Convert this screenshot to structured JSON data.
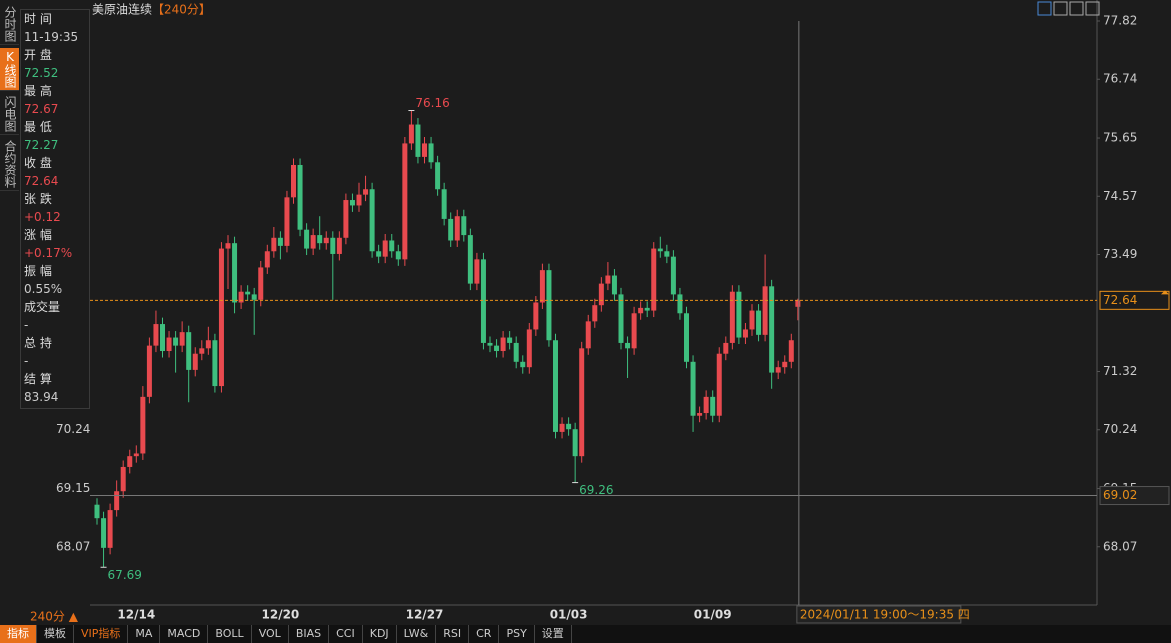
{
  "chart_data": {
    "type": "candlestick",
    "title": "美原油连续",
    "period": "【240分】",
    "period_switch": "240分 ▲",
    "up_color": "#e84a4f",
    "down_color": "#3fbf7f",
    "categories": [
      null,
      null,
      null,
      null,
      null,
      null,
      "12/14",
      null,
      null,
      null,
      null,
      null,
      null,
      null,
      null,
      null,
      null,
      null,
      null,
      null,
      null,
      null,
      null,
      null,
      null,
      null,
      null,
      null,
      "12/20",
      null,
      null,
      null,
      null,
      null,
      null,
      null,
      null,
      null,
      null,
      null,
      null,
      null,
      null,
      null,
      null,
      null,
      null,
      null,
      null,
      null,
      "12/27",
      null,
      null,
      null,
      null,
      null,
      null,
      null,
      null,
      null,
      null,
      null,
      null,
      null,
      null,
      null,
      null,
      null,
      null,
      null,
      null,
      null,
      "01/03",
      null,
      null,
      null,
      null,
      null,
      null,
      null,
      null,
      null,
      null,
      null,
      null,
      null,
      null,
      null,
      null,
      null,
      null,
      null,
      null,
      null,
      "01/09",
      null,
      null,
      null,
      null,
      null,
      null,
      null,
      null,
      null,
      null,
      null,
      null,
      null
    ],
    "open": [
      68.85,
      68.6,
      68.05,
      68.75,
      69.1,
      69.55,
      69.75,
      69.8,
      70.85,
      71.8,
      72.2,
      71.7,
      71.95,
      71.8,
      72.05,
      71.35,
      71.65,
      71.75,
      71.9,
      71.05,
      73.6,
      73.7,
      72.6,
      72.8,
      72.75,
      72.65,
      73.25,
      73.55,
      73.8,
      73.65,
      74.55,
      75.15,
      73.95,
      73.6,
      73.85,
      73.7,
      73.8,
      73.5,
      73.8,
      74.5,
      74.4,
      74.6,
      74.7,
      73.55,
      73.45,
      73.75,
      73.55,
      73.4,
      75.55,
      75.9,
      75.3,
      75.55,
      75.2,
      74.7,
      74.15,
      73.75,
      74.2,
      73.85,
      72.95,
      73.4,
      71.85,
      71.8,
      71.7,
      71.95,
      71.85,
      71.5,
      71.4,
      72.1,
      72.6,
      73.2,
      71.9,
      70.2,
      70.35,
      70.25,
      69.75,
      71.75,
      72.25,
      72.55,
      72.95,
      73.1,
      72.75,
      71.85,
      71.75,
      72.4,
      72.5,
      72.45,
      73.6,
      73.55,
      73.45,
      72.75,
      72.4,
      71.5,
      70.5,
      70.55,
      70.85,
      70.5,
      71.65,
      71.85,
      72.8,
      71.95,
      72.1,
      72.45,
      72.0,
      72.9,
      71.3,
      71.4,
      71.5,
      72.52
    ],
    "high": [
      68.97,
      68.72,
      68.87,
      69.3,
      69.67,
      69.87,
      69.95,
      71.05,
      71.95,
      72.45,
      72.32,
      72.07,
      72.07,
      72.25,
      72.17,
      71.77,
      71.9,
      72.15,
      72.02,
      73.72,
      73.85,
      73.82,
      72.92,
      72.92,
      72.87,
      73.37,
      73.67,
      74.0,
      73.92,
      74.67,
      75.27,
      75.27,
      74.07,
      73.97,
      74.2,
      73.92,
      73.92,
      73.92,
      74.62,
      74.62,
      74.82,
      74.95,
      74.82,
      73.67,
      73.87,
      73.87,
      73.67,
      75.67,
      76.16,
      76.02,
      75.67,
      75.67,
      75.32,
      74.82,
      74.27,
      74.32,
      74.32,
      73.97,
      73.52,
      73.52,
      71.97,
      71.92,
      72.07,
      72.07,
      71.97,
      71.62,
      72.22,
      72.72,
      73.32,
      73.32,
      72.02,
      70.47,
      70.47,
      70.37,
      71.87,
      72.37,
      72.67,
      73.07,
      73.35,
      73.22,
      72.87,
      71.97,
      72.52,
      72.62,
      72.62,
      73.72,
      73.82,
      73.67,
      73.57,
      72.87,
      72.52,
      71.62,
      70.67,
      70.97,
      70.97,
      71.77,
      71.97,
      72.92,
      72.92,
      72.22,
      72.57,
      72.57,
      73.49,
      73.02,
      71.52,
      71.62,
      72.02,
      72.67
    ],
    "low": [
      68.48,
      67.69,
      67.93,
      68.63,
      68.98,
      69.43,
      69.63,
      69.68,
      70.73,
      71.68,
      71.58,
      71.58,
      71.3,
      71.68,
      70.75,
      71.23,
      71.53,
      71.63,
      70.93,
      70.93,
      72.85,
      72.4,
      72.48,
      72.63,
      72.0,
      72.53,
      73.13,
      73.43,
      73.4,
      73.53,
      74.43,
      73.83,
      73.48,
      73.48,
      73.58,
      73.58,
      72.65,
      73.38,
      73.68,
      74.28,
      74.28,
      74.48,
      73.43,
      73.33,
      73.33,
      73.43,
      73.28,
      73.28,
      75.43,
      75.18,
      75.18,
      75.08,
      74.58,
      74.03,
      73.63,
      73.63,
      73.73,
      72.83,
      72.83,
      71.73,
      71.68,
      71.58,
      71.58,
      71.73,
      71.38,
      71.28,
      71.28,
      71.98,
      72.48,
      71.78,
      70.08,
      70.08,
      70.13,
      69.26,
      69.63,
      71.63,
      72.13,
      72.43,
      72.83,
      72.63,
      71.73,
      71.2,
      71.63,
      72.28,
      72.33,
      72.33,
      73.43,
      73.33,
      72.63,
      72.28,
      71.38,
      70.2,
      70.38,
      70.43,
      70.38,
      70.38,
      71.53,
      71.73,
      71.83,
      71.83,
      71.98,
      71.88,
      71.88,
      71.0,
      71.18,
      71.28,
      71.38,
      72.27
    ],
    "close": [
      68.6,
      68.05,
      68.75,
      69.1,
      69.55,
      69.75,
      69.8,
      70.85,
      71.8,
      72.2,
      71.7,
      71.95,
      71.8,
      72.05,
      71.35,
      71.65,
      71.75,
      71.9,
      71.05,
      73.6,
      73.7,
      72.6,
      72.8,
      72.75,
      72.65,
      73.25,
      73.55,
      73.8,
      73.65,
      74.55,
      75.15,
      73.95,
      73.6,
      73.85,
      73.7,
      73.8,
      73.5,
      73.8,
      74.5,
      74.4,
      74.6,
      74.7,
      73.55,
      73.45,
      73.75,
      73.55,
      73.4,
      75.55,
      75.9,
      75.3,
      75.55,
      75.2,
      74.7,
      74.15,
      73.75,
      74.2,
      73.85,
      72.95,
      73.4,
      71.85,
      71.8,
      71.7,
      71.95,
      71.85,
      71.5,
      71.4,
      72.1,
      72.6,
      73.2,
      71.9,
      70.2,
      70.35,
      70.25,
      69.75,
      71.75,
      72.25,
      72.55,
      72.95,
      73.1,
      72.75,
      71.85,
      71.75,
      72.4,
      72.5,
      72.45,
      73.6,
      73.55,
      73.45,
      72.75,
      72.4,
      71.5,
      70.5,
      70.55,
      70.85,
      70.5,
      71.65,
      71.85,
      72.8,
      71.95,
      72.1,
      72.45,
      72.0,
      72.9,
      71.3,
      71.4,
      71.5,
      71.9,
      72.64
    ],
    "ylim": [
      66.99,
      77.95
    ],
    "yticks": [
      77.82,
      76.74,
      75.65,
      74.57,
      73.49,
      71.32,
      70.24,
      69.15,
      68.07
    ],
    "crosshair": {
      "y": 69.02,
      "label": "2024/01/11 19:00～19:35 四"
    }
  },
  "info_panel": [
    {
      "label": "时 间",
      "value": "11-19:35",
      "color": "#ccc"
    },
    {
      "label": "开 盘",
      "value": "72.52",
      "color": "#3fbf7f"
    },
    {
      "label": "最 高",
      "value": "72.67",
      "color": "#e84a4f"
    },
    {
      "label": "最 低",
      "value": "72.27",
      "color": "#3fbf7f"
    },
    {
      "label": "收 盘",
      "value": "72.64",
      "color": "#e84a4f"
    },
    {
      "label": "张 跌",
      "value": "+0.12",
      "color": "#e84a4f"
    },
    {
      "label": "涨 幅",
      "value": "+0.17%",
      "color": "#e84a4f"
    },
    {
      "label": "振 幅",
      "value": "0.55%",
      "color": "#ccc"
    },
    {
      "label": "成交量",
      "value": "-",
      "color": "#ccc"
    },
    {
      "label": "总 持",
      "value": "-",
      "color": "#ccc"
    },
    {
      "label": "结 算",
      "value": "83.94",
      "color": "#ccc"
    }
  ],
  "sidebar": [
    "分时图",
    "K线图",
    "闪电图",
    "合约资料"
  ],
  "toolbar": [
    "指标",
    "模板",
    "VIP指标",
    "MA",
    "MACD",
    "BOLL",
    "VOL",
    "BIAS",
    "CCI",
    "KDJ",
    "LW&",
    "RSI",
    "CR",
    "PSY",
    "设置"
  ]
}
